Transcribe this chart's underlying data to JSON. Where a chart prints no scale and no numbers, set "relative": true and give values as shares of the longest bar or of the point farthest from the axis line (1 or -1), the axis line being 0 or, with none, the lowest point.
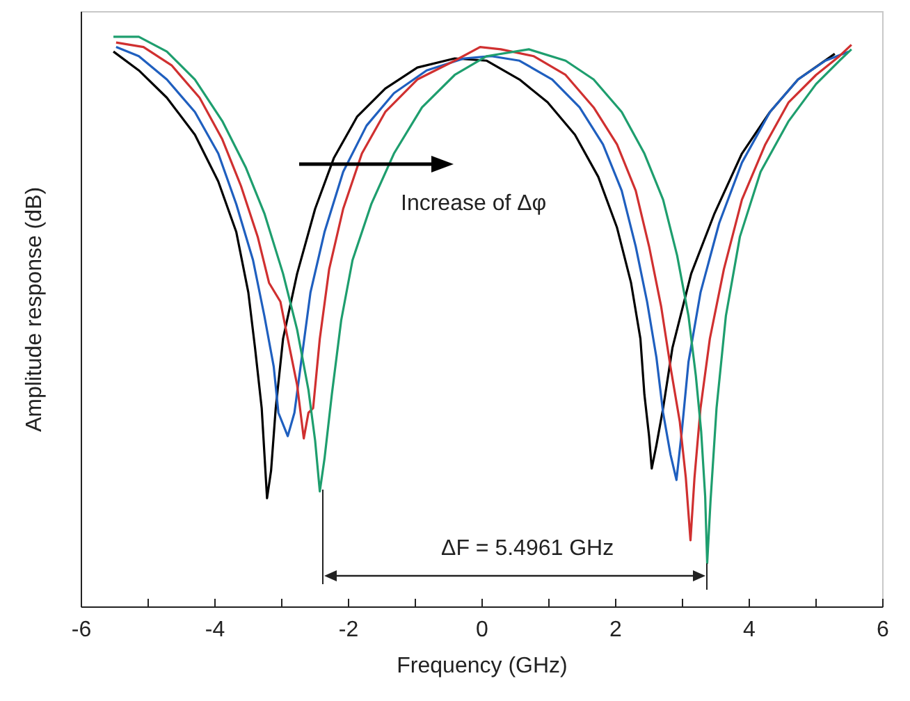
{
  "chart_data": {
    "type": "line",
    "relative": true,
    "xlabel": "Frequency (GHz)",
    "ylabel": "Amplitude response (dB)",
    "xlim": [
      -6,
      6
    ],
    "xticks": [
      -6,
      {
        "value": -5,
        "label": null
      },
      -4,
      {
        "value": -3,
        "label": null
      },
      -2,
      {
        "value": -1,
        "label": null
      },
      0,
      {
        "value": 1,
        "label": null
      },
      2,
      {
        "value": 3,
        "label": null
      },
      4,
      {
        "value": 5,
        "label": null
      },
      6
    ],
    "grid": false,
    "marker": "none",
    "line_style": "solid",
    "annotations": [
      "Increase of Δφ",
      "ΔF = 5.4961 GHz"
    ],
    "series": [
      {
        "color": "#000000",
        "x": [
          -5.51,
          -5.13,
          -4.71,
          -4.29,
          -3.94,
          -3.67,
          -3.49,
          -3.39,
          -3.29,
          -3.21,
          -3.15,
          -3.08,
          -2.97,
          -2.76,
          -2.49,
          -2.21,
          -1.86,
          -1.44,
          -0.96,
          -0.4,
          0.08,
          0.57,
          0.99,
          1.4,
          1.75,
          2.03,
          2.24,
          2.38,
          2.44,
          2.51,
          2.55,
          2.62,
          2.72,
          2.86,
          3.14,
          3.49,
          3.9,
          4.32,
          4.74,
          5.29
        ],
        "values": [
          0.974,
          0.941,
          0.893,
          0.828,
          0.746,
          0.657,
          0.551,
          0.454,
          0.348,
          0.19,
          0.238,
          0.348,
          0.47,
          0.584,
          0.698,
          0.787,
          0.86,
          0.909,
          0.946,
          0.962,
          0.958,
          0.925,
          0.885,
          0.828,
          0.754,
          0.665,
          0.568,
          0.47,
          0.372,
          0.299,
          0.242,
          0.283,
          0.348,
          0.454,
          0.584,
          0.69,
          0.795,
          0.868,
          0.925,
          0.97
        ]
      },
      {
        "color": "#1f5fbf",
        "x": [
          -5.47,
          -5.13,
          -4.71,
          -4.29,
          -3.94,
          -3.67,
          -3.42,
          -3.25,
          -3.11,
          -3.04,
          -2.9,
          -2.8,
          -2.69,
          -2.56,
          -2.35,
          -2.07,
          -1.72,
          -1.31,
          -0.82,
          -0.26,
          0.15,
          0.57,
          1.06,
          1.47,
          1.82,
          2.1,
          2.31,
          2.48,
          2.62,
          2.72,
          2.83,
          2.92,
          3.0,
          3.1,
          3.28,
          3.56,
          3.9,
          4.32,
          4.74,
          5.15,
          5.5
        ],
        "values": [
          0.982,
          0.966,
          0.925,
          0.868,
          0.795,
          0.706,
          0.608,
          0.51,
          0.421,
          0.34,
          0.299,
          0.34,
          0.437,
          0.551,
          0.657,
          0.763,
          0.844,
          0.901,
          0.941,
          0.962,
          0.966,
          0.958,
          0.925,
          0.876,
          0.811,
          0.73,
          0.632,
          0.535,
          0.437,
          0.34,
          0.267,
          0.222,
          0.307,
          0.429,
          0.551,
          0.673,
          0.779,
          0.868,
          0.925,
          0.958,
          0.974
        ]
      },
      {
        "color": "#d03030",
        "x": [
          -5.47,
          -5.06,
          -4.64,
          -4.22,
          -3.88,
          -3.6,
          -3.35,
          -3.18,
          -3.01,
          -2.9,
          -2.76,
          -2.66,
          -2.59,
          -2.52,
          -2.42,
          -2.28,
          -2.07,
          -1.79,
          -1.44,
          -0.96,
          -0.4,
          -0.02,
          0.29,
          0.78,
          1.26,
          1.68,
          2.03,
          2.31,
          2.51,
          2.69,
          2.83,
          2.97,
          3.06,
          3.13,
          3.19,
          3.28,
          3.42,
          3.63,
          3.9,
          4.25,
          4.6,
          5.01,
          5.36,
          5.54
        ],
        "values": [
          0.99,
          0.982,
          0.95,
          0.893,
          0.82,
          0.738,
          0.649,
          0.568,
          0.535,
          0.47,
          0.389,
          0.295,
          0.34,
          0.348,
          0.47,
          0.592,
          0.698,
          0.795,
          0.868,
          0.925,
          0.958,
          0.982,
          0.978,
          0.966,
          0.933,
          0.876,
          0.811,
          0.73,
          0.632,
          0.527,
          0.421,
          0.324,
          0.226,
          0.116,
          0.226,
          0.348,
          0.47,
          0.592,
          0.714,
          0.811,
          0.885,
          0.933,
          0.966,
          0.986
        ]
      },
      {
        "color": "#1e9e6e",
        "x": [
          -5.51,
          -5.13,
          -4.71,
          -4.29,
          -3.88,
          -3.53,
          -3.25,
          -2.97,
          -2.76,
          -2.59,
          -2.49,
          -2.42,
          -2.35,
          -2.24,
          -2.1,
          -1.93,
          -1.65,
          -1.31,
          -0.89,
          -0.4,
          0.08,
          0.71,
          1.26,
          1.68,
          2.1,
          2.44,
          2.72,
          2.93,
          3.1,
          3.21,
          3.29,
          3.35,
          3.38,
          3.43,
          3.52,
          3.66,
          3.87,
          4.18,
          4.6,
          5.01,
          5.36,
          5.54
        ],
        "values": [
          1.0,
          1.0,
          0.974,
          0.925,
          0.852,
          0.771,
          0.69,
          0.584,
          0.486,
          0.38,
          0.291,
          0.202,
          0.259,
          0.372,
          0.502,
          0.608,
          0.706,
          0.795,
          0.876,
          0.933,
          0.966,
          0.978,
          0.958,
          0.925,
          0.868,
          0.795,
          0.714,
          0.616,
          0.51,
          0.405,
          0.307,
          0.193,
          0.076,
          0.185,
          0.348,
          0.51,
          0.649,
          0.763,
          0.852,
          0.917,
          0.958,
          0.978
        ]
      }
    ]
  }
}
